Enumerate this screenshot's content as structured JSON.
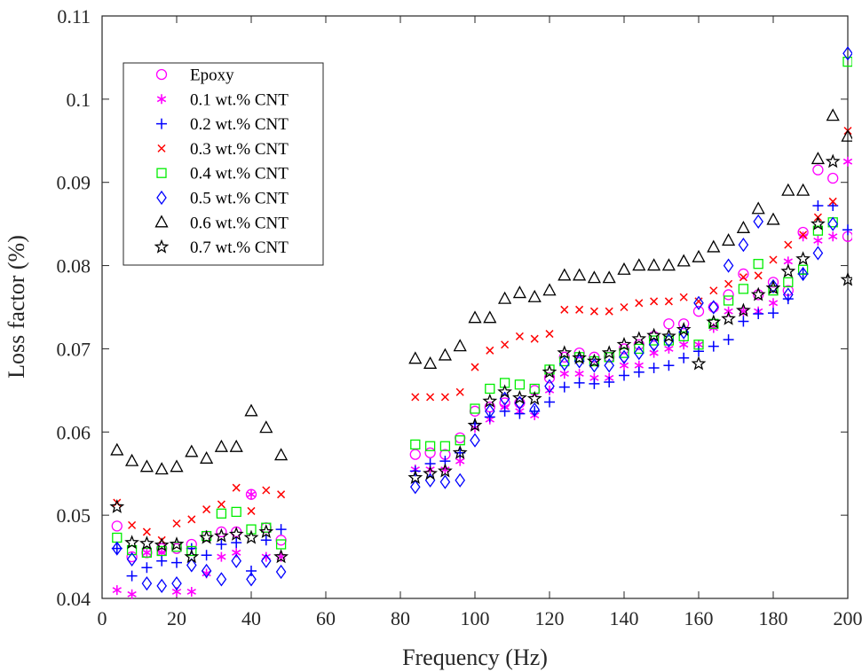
{
  "chart_data": {
    "type": "scatter",
    "title": "",
    "xlabel": "Frequency (Hz)",
    "ylabel": "Loss factor (%)",
    "xlim": [
      0,
      200
    ],
    "ylim": [
      0.04,
      0.11
    ],
    "xticks": [
      0,
      20,
      40,
      60,
      80,
      100,
      120,
      140,
      160,
      180,
      200
    ],
    "yticks": [
      0.04,
      0.05,
      0.06,
      0.07,
      0.08,
      0.09,
      0.1,
      0.11
    ],
    "xtick_labels": [
      "0",
      "20",
      "40",
      "60",
      "80",
      "100",
      "120",
      "140",
      "160",
      "180",
      "200"
    ],
    "ytick_labels": [
      "0.04",
      "0.05",
      "0.06",
      "0.07",
      "0.08",
      "0.09",
      "0.1",
      "0.11"
    ],
    "grid": false,
    "legend_position": "top-left",
    "x": [
      4,
      8,
      12,
      16,
      20,
      24,
      28,
      32,
      36,
      40,
      44,
      48,
      84,
      88,
      92,
      96,
      100,
      104,
      108,
      112,
      116,
      120,
      124,
      128,
      132,
      136,
      140,
      144,
      148,
      152,
      156,
      160,
      164,
      168,
      172,
      176,
      180,
      184,
      188,
      192,
      196,
      200
    ],
    "series": [
      {
        "name": "Epoxy",
        "marker": "circle",
        "color": "#ff00ff",
        "values": [
          0.0487,
          0.045,
          0.0455,
          0.046,
          0.046,
          0.0465,
          0.0475,
          0.048,
          0.048,
          0.0525,
          0.0485,
          0.047,
          0.0573,
          0.0575,
          0.0573,
          0.0593,
          0.0625,
          0.063,
          0.0635,
          0.0635,
          0.065,
          0.0665,
          0.069,
          0.0695,
          0.069,
          0.069,
          0.07,
          0.0705,
          0.0715,
          0.073,
          0.073,
          0.0745,
          0.075,
          0.0765,
          0.079,
          0.0765,
          0.078,
          0.077,
          0.084,
          0.0915,
          0.0905,
          0.0835
        ]
      },
      {
        "name": "0.1 wt.% CNT",
        "marker": "asterisk",
        "color": "#ff00ff",
        "values": [
          0.041,
          0.0405,
          0.0455,
          0.0455,
          0.0408,
          0.0408,
          0.043,
          0.045,
          0.0455,
          0.0525,
          0.045,
          0.045,
          0.0555,
          0.0555,
          0.0555,
          0.0565,
          0.0605,
          0.0615,
          0.063,
          0.0625,
          0.062,
          0.065,
          0.067,
          0.067,
          0.0665,
          0.0665,
          0.068,
          0.068,
          0.0695,
          0.07,
          0.0705,
          0.0705,
          0.0725,
          0.0745,
          0.0745,
          0.0745,
          0.0755,
          0.0805,
          0.0835,
          0.083,
          0.0835,
          0.0925
        ]
      },
      {
        "name": "0.2 wt.% CNT",
        "marker": "plus",
        "color": "#0000ff",
        "values": [
          0.046,
          0.0427,
          0.0437,
          0.0445,
          0.0443,
          0.046,
          0.0452,
          0.0465,
          0.0467,
          0.0433,
          0.047,
          0.0483,
          0.0553,
          0.0562,
          0.0565,
          0.0575,
          0.061,
          0.0618,
          0.0625,
          0.0622,
          0.0625,
          0.0636,
          0.0654,
          0.0659,
          0.0658,
          0.066,
          0.0668,
          0.0672,
          0.0677,
          0.068,
          0.0689,
          0.0697,
          0.0703,
          0.0711,
          0.0733,
          0.0742,
          0.0743,
          0.076,
          0.079,
          0.0872,
          0.0872,
          0.0843
        ]
      },
      {
        "name": "0.3 wt.% CNT",
        "marker": "x",
        "color": "#ff0000",
        "values": [
          0.0515,
          0.0488,
          0.048,
          0.047,
          0.049,
          0.0495,
          0.0507,
          0.0513,
          0.0533,
          0.0505,
          0.053,
          0.0525,
          0.0642,
          0.0642,
          0.0642,
          0.0648,
          0.0678,
          0.0698,
          0.0705,
          0.0715,
          0.0712,
          0.0718,
          0.0747,
          0.0747,
          0.0745,
          0.0745,
          0.075,
          0.0755,
          0.0757,
          0.0757,
          0.0762,
          0.0757,
          0.077,
          0.0778,
          0.0786,
          0.0788,
          0.0807,
          0.0825,
          0.0837,
          0.0858,
          0.0877,
          0.0962
        ]
      },
      {
        "name": "0.4 wt.% CNT",
        "marker": "square",
        "color": "#00ee00",
        "values": [
          0.0473,
          0.0458,
          0.0455,
          0.0457,
          0.0462,
          0.0457,
          0.0475,
          0.0502,
          0.0504,
          0.0483,
          0.0485,
          0.0465,
          0.0585,
          0.0583,
          0.0583,
          0.059,
          0.0628,
          0.0652,
          0.0659,
          0.0657,
          0.0652,
          0.0675,
          0.0685,
          0.069,
          0.0685,
          0.069,
          0.0695,
          0.07,
          0.071,
          0.071,
          0.0715,
          0.0705,
          0.073,
          0.0758,
          0.0772,
          0.0802,
          0.077,
          0.078,
          0.0795,
          0.0842,
          0.0852,
          0.1045
        ]
      },
      {
        "name": "0.5 wt.% CNT",
        "marker": "diamond",
        "color": "#0000ff",
        "values": [
          0.046,
          0.0447,
          0.0418,
          0.0415,
          0.0418,
          0.044,
          0.0433,
          0.0423,
          0.0445,
          0.0423,
          0.0445,
          0.0432,
          0.0534,
          0.0542,
          0.054,
          0.0542,
          0.059,
          0.0625,
          0.064,
          0.0635,
          0.0627,
          0.0655,
          0.0682,
          0.0685,
          0.068,
          0.068,
          0.069,
          0.0695,
          0.0705,
          0.071,
          0.072,
          0.0755,
          0.075,
          0.08,
          0.0825,
          0.0853,
          0.0775,
          0.0765,
          0.079,
          0.0815,
          0.085,
          0.1055
        ]
      },
      {
        "name": "0.6 wt.% CNT",
        "marker": "triangle",
        "color": "#000000",
        "values": [
          0.0578,
          0.0565,
          0.0558,
          0.0555,
          0.0558,
          0.0576,
          0.0568,
          0.0582,
          0.0582,
          0.0625,
          0.0605,
          0.0572,
          0.0688,
          0.0682,
          0.0692,
          0.0703,
          0.0737,
          0.0737,
          0.076,
          0.0767,
          0.0762,
          0.077,
          0.0788,
          0.0788,
          0.0785,
          0.0785,
          0.0795,
          0.08,
          0.08,
          0.08,
          0.0805,
          0.081,
          0.0822,
          0.083,
          0.0845,
          0.0868,
          0.0855,
          0.089,
          0.089,
          0.0928,
          0.098,
          0.0955
        ]
      },
      {
        "name": "0.7 wt.% CNT",
        "marker": "star",
        "color": "#000000",
        "values": [
          0.051,
          0.0467,
          0.0466,
          0.0464,
          0.0465,
          0.045,
          0.0473,
          0.0475,
          0.0477,
          0.0473,
          0.048,
          0.045,
          0.0545,
          0.055,
          0.0553,
          0.0575,
          0.0608,
          0.0637,
          0.0648,
          0.0641,
          0.064,
          0.0672,
          0.0695,
          0.0689,
          0.0685,
          0.0695,
          0.0705,
          0.0712,
          0.0716,
          0.0715,
          0.0723,
          0.0682,
          0.0732,
          0.0736,
          0.0746,
          0.0765,
          0.0773,
          0.0793,
          0.0808,
          0.085,
          0.0925,
          0.0783
        ]
      }
    ]
  }
}
